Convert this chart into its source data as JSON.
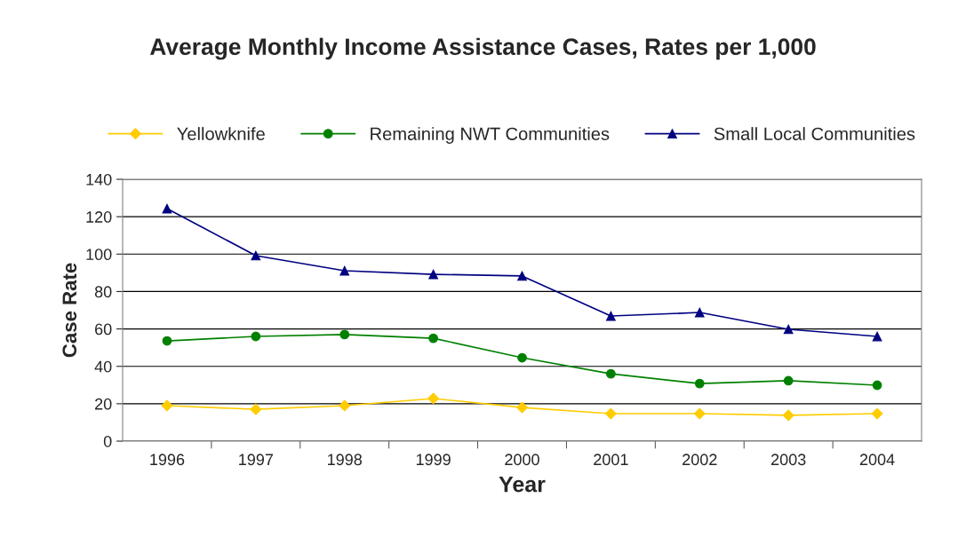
{
  "chart_data": {
    "type": "line",
    "title": "Average Monthly Income Assistance Cases, Rates per 1,000",
    "xlabel": "Year",
    "ylabel": "Case Rate",
    "categories": [
      "1996",
      "1997",
      "1998",
      "1999",
      "2000",
      "2001",
      "2002",
      "2003",
      "2004"
    ],
    "series": [
      {
        "name": "Yellowknife",
        "color": "#ffcc00",
        "marker": "diamond",
        "values": [
          19,
          17,
          19,
          22.8,
          18,
          14.7,
          14.7,
          13.8,
          14.7
        ]
      },
      {
        "name": "Remaining NWT Communities",
        "color": "#008000",
        "marker": "circle",
        "values": [
          53.6,
          56,
          57,
          55,
          44.6,
          36,
          30.8,
          32.3,
          29.9
        ]
      },
      {
        "name": "Small Local Communities",
        "color": "#000080",
        "marker": "triangle",
        "values": [
          124.3,
          99.2,
          91.1,
          89.2,
          88.3,
          66.9,
          68.8,
          59.8,
          56
        ]
      }
    ],
    "ylim": [
      0,
      140
    ],
    "yticks": [
      0,
      20,
      40,
      60,
      80,
      100,
      120,
      140
    ],
    "grid": "y",
    "legend": "top",
    "line_style": "solid"
  }
}
